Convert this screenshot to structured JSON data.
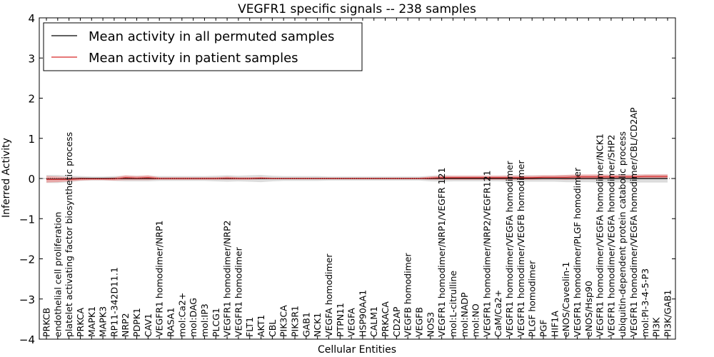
{
  "chart_data": {
    "type": "line",
    "title": "VEGFR1 specific signals -- 238 samples",
    "xlabel": "Cellular Entities",
    "ylabel": "Inferred Activity",
    "ylim": [
      -4,
      4
    ],
    "yticks": [
      "−4",
      "−3",
      "−2",
      "−1",
      "0",
      "1",
      "2",
      "3",
      "4"
    ],
    "legend_position": "top-left",
    "grid": false,
    "colors": {
      "permuted": "#000000",
      "patient": "#d62728",
      "permuted_band": "#bfbfbf",
      "patient_band": "#f08080"
    },
    "categories": [
      "PRKCB",
      "endothelial cell proliferation",
      "platelet activating factor biosynthetic process",
      "PRKCA",
      "MAPK1",
      "MAPK3",
      "RP11-342D11.1",
      "NRP2",
      "PDPK1",
      "CAV1",
      "VEGFR1 homodimer/NRP1",
      "RASA1",
      "mol:Ca2+",
      "mol:DAG",
      "mol:IP3",
      "PLCG1",
      "VEGFR1 homodimer/NRP2",
      "VEGFR1 homodimer",
      "FLT1",
      "AKT1",
      "CBL",
      "PIK3CA",
      "PIK3R1",
      "GAB1",
      "NCK1",
      "VEGFA homodimer",
      "PTPN11",
      "VEGFA",
      "HSP90AA1",
      "CALM1",
      "PRKACA",
      "CD2AP",
      "VEGFB homodimer",
      "VEGFB",
      "NOS3",
      "VEGFR1 homodimer/NRP1/VEGFR 121",
      "mol:L-citrulline",
      "mol:NADP",
      "mol:NO",
      "VEGFR1 homodimer/NRP2/VEGFR121",
      "CaM/Ca2+",
      "VEGFR1 homodimer/VEGFA homodimer",
      "VEGFR1 homodimer/VEGFB homodimer",
      "PLGF homodimer",
      "PGF",
      "HIF1A",
      "eNOS/Caveolin-1",
      "VEGFR1 homodimer/PLGF homodimer",
      "eNOS/Hsp90",
      "VEGFR1 homodimer/VEGFA homodimer/NCK1",
      "VEGFR1 homodimer/VEGFA homodimer/SHP2",
      "ubiquitin-dependent protein catabolic process",
      "VEGFR1 homodimer/VEGFA homodimer/CBL/CD2AP",
      "mol:PI-3-4-5-P3",
      "PI3K",
      "PI3K/GAB1"
    ],
    "series": [
      {
        "name": "Mean activity in all permuted samples",
        "values": [
          -0.01,
          -0.01,
          -0.01,
          0,
          0,
          0,
          0,
          0,
          0,
          0,
          0,
          0,
          0,
          0,
          0,
          0,
          0,
          0,
          0,
          0,
          0,
          0,
          0,
          0,
          0,
          0,
          0,
          0,
          0,
          0,
          0,
          0,
          0,
          0,
          0,
          0,
          0,
          0,
          0,
          0,
          0,
          0,
          0,
          0,
          0,
          0,
          0,
          0,
          0,
          0,
          0,
          0,
          0,
          0,
          0,
          0
        ],
        "spread": [
          0.1,
          0.1,
          0.08,
          0.06,
          0.05,
          0.05,
          0.06,
          0.07,
          0.07,
          0.07,
          0.06,
          0.06,
          0.06,
          0.06,
          0.06,
          0.07,
          0.08,
          0.07,
          0.08,
          0.09,
          0.07,
          0.06,
          0.06,
          0.06,
          0.06,
          0.05,
          0.05,
          0.05,
          0.05,
          0.05,
          0.05,
          0.05,
          0.05,
          0.05,
          0.07,
          0.08,
          0.07,
          0.07,
          0.07,
          0.07,
          0.07,
          0.08,
          0.08,
          0.08,
          0.08,
          0.08,
          0.09,
          0.09,
          0.09,
          0.1,
          0.1,
          0.1,
          0.1,
          0.1,
          0.1,
          0.1
        ]
      },
      {
        "name": "Mean activity in patient samples",
        "values": [
          -0.02,
          -0.02,
          -0.02,
          -0.01,
          -0.01,
          -0.01,
          -0.01,
          0.02,
          0.01,
          0.02,
          0.0,
          0.0,
          0.0,
          0.0,
          0.0,
          0.0,
          0.01,
          0.0,
          0.0,
          0.01,
          0.0,
          0.0,
          0.0,
          0.0,
          0.0,
          0.0,
          0.0,
          0.0,
          0.0,
          0.0,
          0.0,
          0.0,
          0.0,
          0.0,
          0.01,
          0.02,
          0.02,
          0.02,
          0.02,
          0.02,
          0.02,
          0.02,
          0.02,
          0.02,
          0.03,
          0.03,
          0.03,
          0.04,
          0.04,
          0.04,
          0.04,
          0.04,
          0.04,
          0.05,
          0.05,
          0.05
        ],
        "spread": [
          0.08,
          0.07,
          0.05,
          0.04,
          0.03,
          0.03,
          0.04,
          0.06,
          0.05,
          0.06,
          0.03,
          0.03,
          0.03,
          0.03,
          0.03,
          0.03,
          0.04,
          0.03,
          0.03,
          0.03,
          0.02,
          0.02,
          0.02,
          0.02,
          0.02,
          0.02,
          0.02,
          0.02,
          0.02,
          0.02,
          0.02,
          0.02,
          0.02,
          0.02,
          0.04,
          0.05,
          0.05,
          0.05,
          0.05,
          0.05,
          0.05,
          0.05,
          0.05,
          0.05,
          0.05,
          0.05,
          0.06,
          0.06,
          0.06,
          0.06,
          0.05,
          0.05,
          0.05,
          0.05,
          0.05,
          0.05
        ]
      }
    ]
  }
}
